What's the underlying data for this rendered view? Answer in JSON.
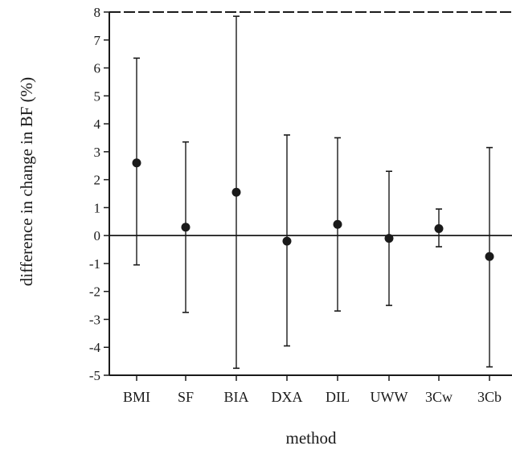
{
  "chart_data": {
    "type": "errorbar",
    "title": "",
    "xlabel": "method",
    "ylabel": "difference in change in BF (%)",
    "ylim": [
      -5,
      8
    ],
    "yticks": [
      -5,
      -4,
      -3,
      -2,
      -1,
      0,
      1,
      2,
      3,
      4,
      5,
      6,
      7,
      8
    ],
    "categories": [
      "BMI",
      "SF",
      "BIA",
      "DXA",
      "DIL",
      "UWW",
      "3Cw",
      "3Cb"
    ],
    "means": [
      2.6,
      0.3,
      1.55,
      -0.2,
      0.4,
      -0.1,
      0.25,
      -0.75
    ],
    "lower": [
      -1.05,
      -2.75,
      -4.75,
      -3.95,
      -2.7,
      -2.5,
      -0.4,
      -4.7
    ],
    "upper": [
      6.35,
      3.35,
      7.85,
      3.6,
      3.5,
      2.3,
      0.95,
      3.15
    ],
    "reference_line": 0,
    "grid": false,
    "colors": {
      "ink": "#1a1a1a"
    }
  }
}
